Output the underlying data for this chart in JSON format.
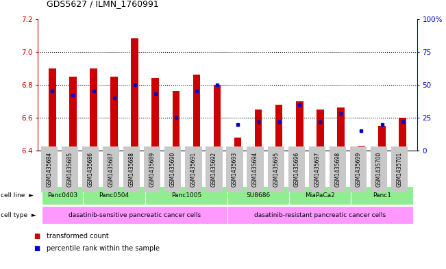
{
  "title": "GDS5627 / ILMN_1760991",
  "samples": [
    "GSM1435684",
    "GSM1435685",
    "GSM1435686",
    "GSM1435687",
    "GSM1435688",
    "GSM1435689",
    "GSM1435690",
    "GSM1435691",
    "GSM1435692",
    "GSM1435693",
    "GSM1435694",
    "GSM1435695",
    "GSM1435696",
    "GSM1435697",
    "GSM1435698",
    "GSM1435699",
    "GSM1435700",
    "GSM1435701"
  ],
  "transformed_count": [
    6.9,
    6.85,
    6.9,
    6.85,
    7.08,
    6.84,
    6.76,
    6.86,
    6.8,
    6.48,
    6.65,
    6.68,
    6.7,
    6.65,
    6.66,
    6.43,
    6.55,
    6.6
  ],
  "percentile_rank": [
    45,
    42,
    45,
    40,
    50,
    43,
    25,
    45,
    50,
    20,
    22,
    22,
    35,
    22,
    28,
    15,
    20,
    22
  ],
  "ylim_left": [
    6.4,
    7.2
  ],
  "ylim_right": [
    0,
    100
  ],
  "yticks_left": [
    6.4,
    6.6,
    6.8,
    7.0,
    7.2
  ],
  "yticks_right": [
    0,
    25,
    50,
    75,
    100
  ],
  "cell_lines": {
    "Panc0403": [
      0,
      1
    ],
    "Panc0504": [
      2,
      3,
      4
    ],
    "Panc1005": [
      5,
      6,
      7,
      8
    ],
    "SU8686": [
      9,
      10,
      11
    ],
    "MiaPaCa2": [
      12,
      13,
      14
    ],
    "Panc1": [
      15,
      16,
      17
    ]
  },
  "cell_line_color": "#90EE90",
  "cell_type_groups": {
    "dasatinib-sensitive pancreatic cancer cells": [
      0,
      8
    ],
    "dasatinib-resistant pancreatic cancer cells": [
      9,
      17
    ]
  },
  "cell_type_color": "#FF99FF",
  "bar_color": "#CC0000",
  "dot_color": "#0000CC",
  "grid_color": "#000000",
  "left_axis_color": "#CC0000",
  "right_axis_color": "#0000CC",
  "background_color": "#FFFFFF",
  "tick_bg_color": "#C8C8C8"
}
